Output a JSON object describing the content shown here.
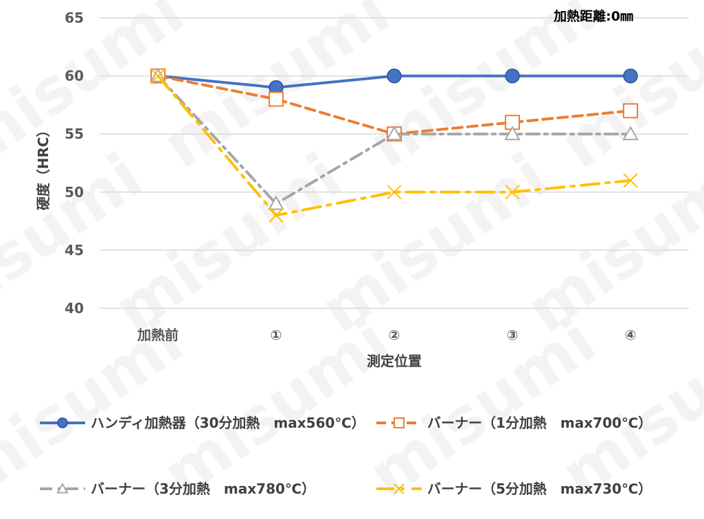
{
  "chart_data": {
    "type": "line",
    "annotation": "加熱距離:0㎜",
    "ylabel": "硬度（HRC）",
    "xlabel": "測定位置",
    "categories": [
      "加熱前",
      "①",
      "②",
      "③",
      "④"
    ],
    "yticks": [
      40,
      45,
      50,
      55,
      60,
      65
    ],
    "ylim": [
      40,
      65
    ],
    "grid": true,
    "legend_position": "bottom",
    "series": [
      {
        "name": "ハンディ加熱器（30分加熱　max560℃）",
        "values": [
          60,
          59,
          60,
          60,
          60
        ],
        "color": "#4472C4",
        "marker": "circle",
        "dash": "solid"
      },
      {
        "name": "バーナー（1分加熱　max700℃）",
        "values": [
          60,
          58,
          55,
          56,
          57
        ],
        "color": "#ED7D31",
        "marker": "square",
        "dash": "dash"
      },
      {
        "name": "バーナー（3分加熱　max780℃）",
        "values": [
          60,
          49,
          55,
          55,
          55
        ],
        "color": "#A5A5A5",
        "marker": "triangle",
        "dash": "dashdot"
      },
      {
        "name": "バーナー（5分加熱　max730℃）",
        "values": [
          60,
          48,
          50,
          50,
          51
        ],
        "color": "#FFC000",
        "marker": "x",
        "dash": "longdashdot"
      }
    ]
  },
  "watermark": "misumi"
}
